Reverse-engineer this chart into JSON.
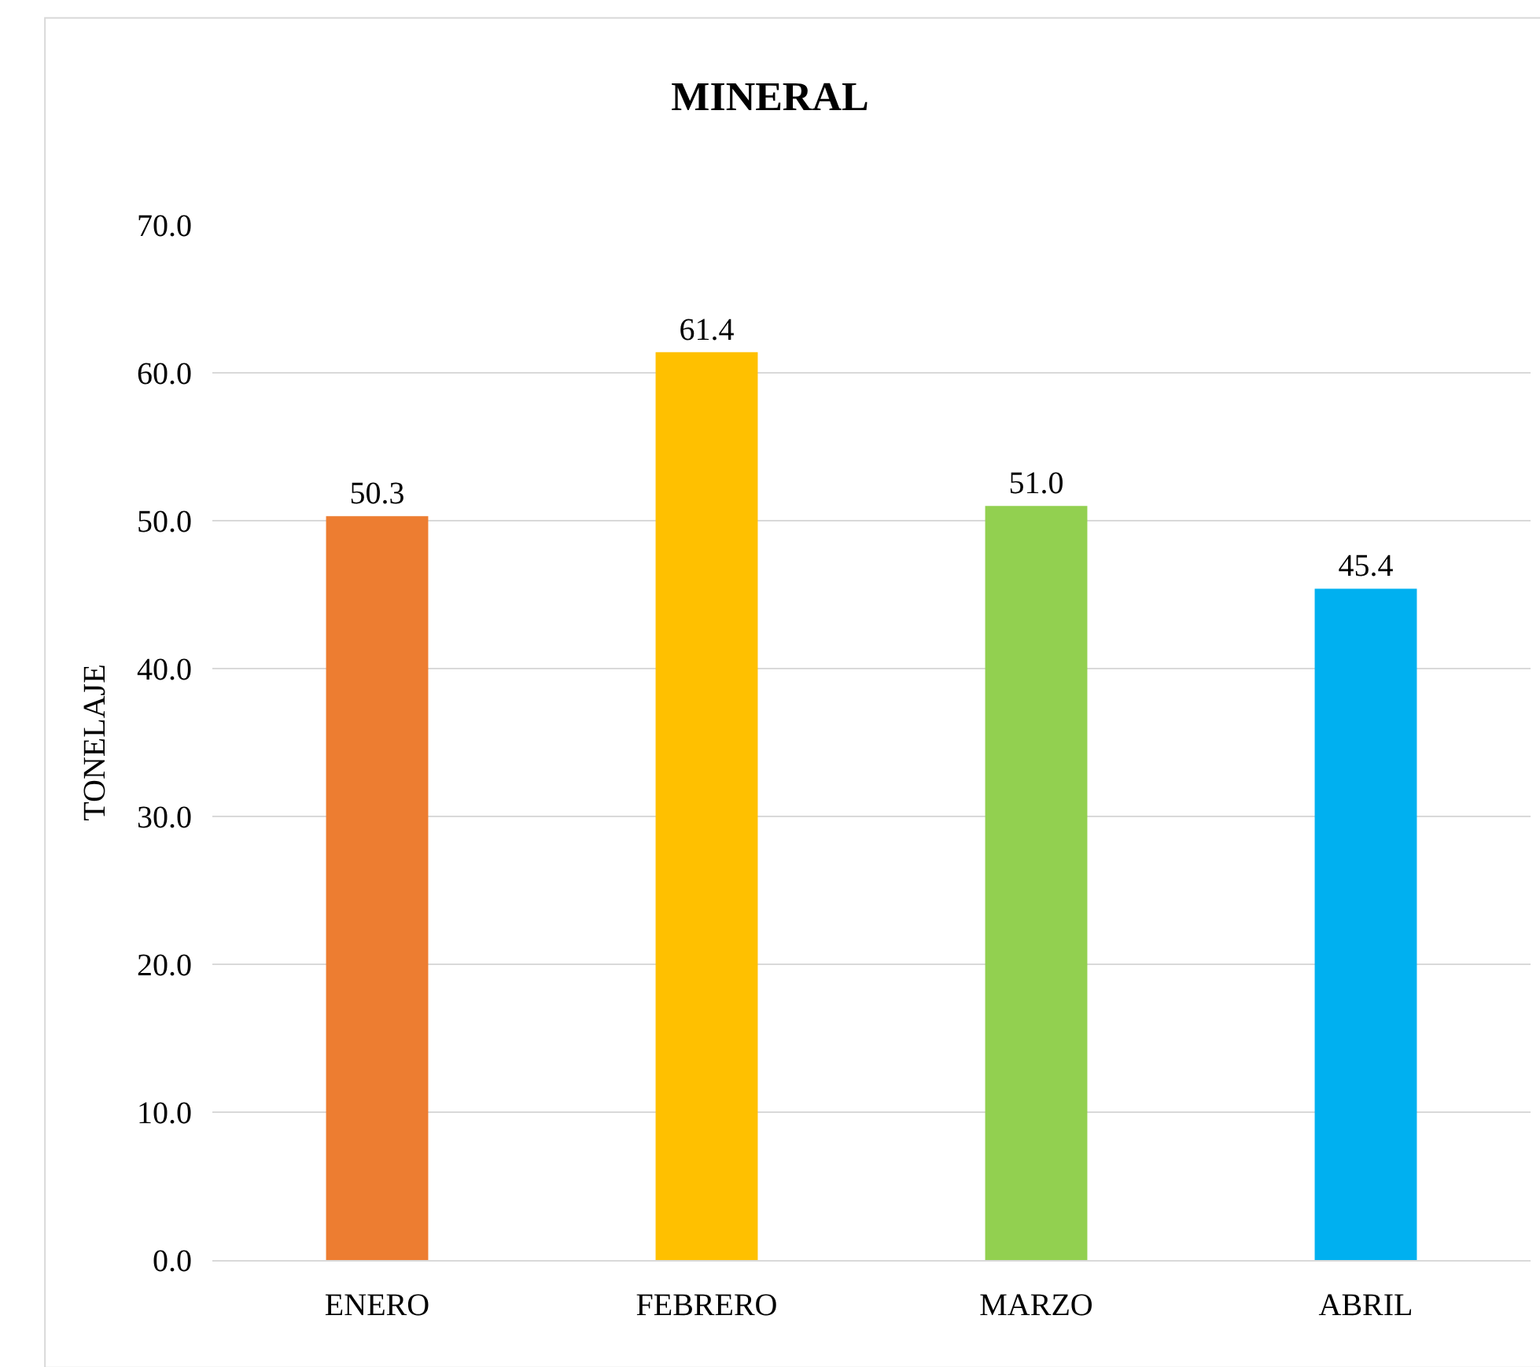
{
  "chart_data": {
    "type": "bar",
    "title": "MINERAL",
    "ylabel": "TONELAJE",
    "categories": [
      "ENERO",
      "FEBRERO",
      "MARZO",
      "ABRIL"
    ],
    "values": [
      50.3,
      61.4,
      51.0,
      45.4
    ],
    "colors": [
      "#ed7d31",
      "#ffc000",
      "#92d050",
      "#00b0f0"
    ],
    "value_labels": [
      "50.3",
      "61.4",
      "51.0",
      "45.4"
    ],
    "ylim": [
      0,
      70
    ],
    "yticks": [
      {
        "value": 0,
        "label": "0.0"
      },
      {
        "value": 10,
        "label": "10.0"
      },
      {
        "value": 20,
        "label": "20.0"
      },
      {
        "value": 30,
        "label": "30.0"
      },
      {
        "value": 40,
        "label": "40.0"
      },
      {
        "value": 50,
        "label": "50.0"
      },
      {
        "value": 60,
        "label": "60.0"
      },
      {
        "value": 70,
        "label": "70.0"
      }
    ],
    "grid": "y"
  }
}
